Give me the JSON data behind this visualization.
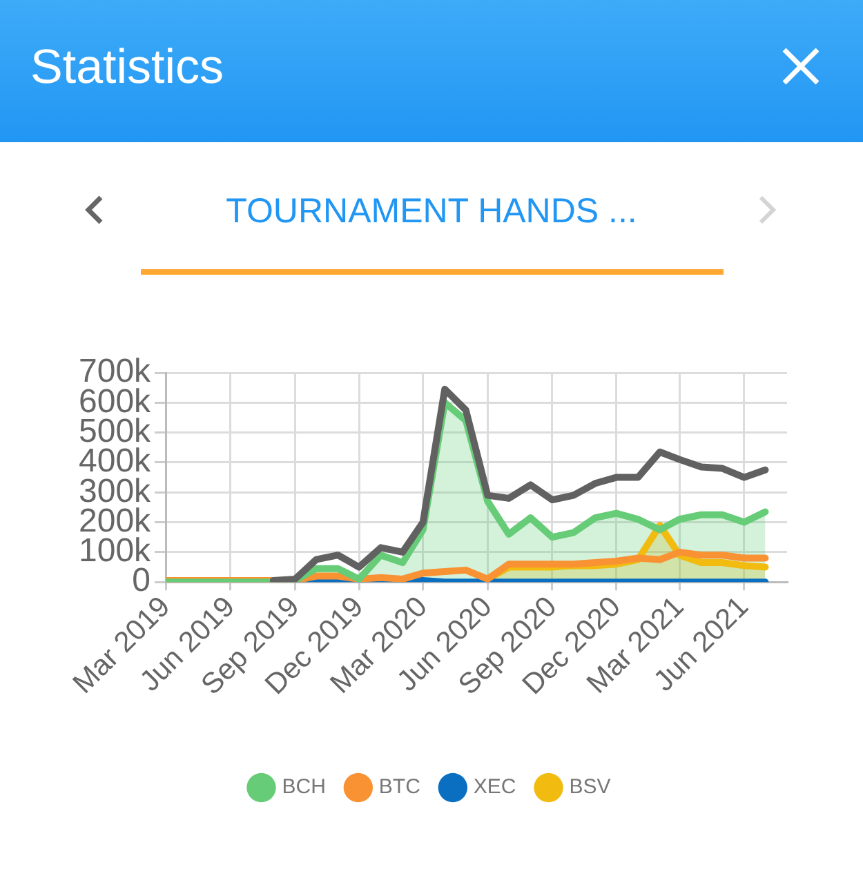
{
  "chart_data": {
    "type": "line",
    "title": "TOURNAMENT HANDS ...",
    "annotations": [
      "Statistics"
    ],
    "x": [
      "2019-03",
      "2019-04",
      "2019-05",
      "2019-06",
      "2019-07",
      "2019-08",
      "2019-09",
      "2019-10",
      "2019-11",
      "2019-12",
      "2020-01",
      "2020-02",
      "2020-03",
      "2020-04",
      "2020-05",
      "2020-06",
      "2020-07",
      "2020-08",
      "2020-09",
      "2020-10",
      "2020-11",
      "2020-12",
      "2021-01",
      "2021-02",
      "2021-03",
      "2021-04",
      "2021-05",
      "2021-06",
      "2021-07"
    ],
    "series": [
      {
        "type": "line",
        "color": "#616161",
        "values": [
          null,
          null,
          null,
          null,
          null,
          5000,
          10000,
          75000,
          90000,
          50000,
          115000,
          100000,
          200000,
          645000,
          575000,
          290000,
          280000,
          325000,
          275000,
          290000,
          330000,
          350000,
          350000,
          435000,
          410000,
          385000,
          380000,
          350000,
          375000
        ]
      },
      {
        "name": "BCH",
        "type": "area",
        "color": "#66cc77",
        "values": [
          0,
          0,
          0,
          0,
          0,
          0,
          5000,
          45000,
          45000,
          10000,
          90000,
          65000,
          175000,
          600000,
          540000,
          270000,
          160000,
          215000,
          150000,
          165000,
          215000,
          230000,
          210000,
          175000,
          210000,
          225000,
          225000,
          200000,
          235000
        ]
      },
      {
        "name": "BTC",
        "type": "line",
        "color": "#f99233",
        "values": [
          5000,
          5000,
          5000,
          5000,
          5000,
          5000,
          5000,
          20000,
          20000,
          10000,
          15000,
          10000,
          30000,
          35000,
          40000,
          10000,
          60000,
          60000,
          60000,
          60000,
          65000,
          70000,
          80000,
          75000,
          100000,
          90000,
          90000,
          80000,
          80000
        ]
      },
      {
        "name": "XEC",
        "type": "line",
        "color": "#0b6fc1",
        "values": [
          null,
          null,
          null,
          null,
          null,
          null,
          0,
          5000,
          5000,
          5000,
          5000,
          5000,
          5000,
          0,
          0,
          0,
          0,
          0,
          0,
          0,
          0,
          0,
          0,
          0,
          0,
          0,
          0,
          0,
          0
        ]
      },
      {
        "name": "BSV",
        "type": "area",
        "color": "#f1bb10",
        "values": [
          null,
          null,
          null,
          null,
          null,
          null,
          null,
          null,
          null,
          null,
          null,
          null,
          null,
          null,
          null,
          10000,
          50000,
          50000,
          50000,
          55000,
          55000,
          60000,
          75000,
          190000,
          90000,
          65000,
          65000,
          55000,
          50000
        ]
      }
    ],
    "xlim": [
      "2019-03",
      "2021-08"
    ],
    "xticks": [
      {
        "value": "2019-03",
        "label": "Mar 2019"
      },
      {
        "value": "2019-06",
        "label": "Jun 2019"
      },
      {
        "value": "2019-09",
        "label": "Sep 2019"
      },
      {
        "value": "2019-12",
        "label": "Dec 2019"
      },
      {
        "value": "2020-03",
        "label": "Mar 2020"
      },
      {
        "value": "2020-06",
        "label": "Jun 2020"
      },
      {
        "value": "2020-09",
        "label": "Sep 2020"
      },
      {
        "value": "2020-12",
        "label": "Dec 2020"
      },
      {
        "value": "2021-03",
        "label": "Mar 2021"
      },
      {
        "value": "2021-06",
        "label": "Jun 2021"
      }
    ],
    "ylim": [
      0,
      700000
    ],
    "yticks": [
      0,
      {
        "value": 100000,
        "label": "100k"
      },
      {
        "value": 200000,
        "label": "200k"
      },
      {
        "value": 300000,
        "label": "300k"
      },
      {
        "value": 400000,
        "label": "400k"
      },
      {
        "value": 500000,
        "label": "500k"
      },
      {
        "value": 600000,
        "label": "600k"
      },
      {
        "value": 700000,
        "label": "700k"
      }
    ],
    "grid": true,
    "legend": "bottom",
    "marker": "none",
    "line_style": "solid"
  }
}
